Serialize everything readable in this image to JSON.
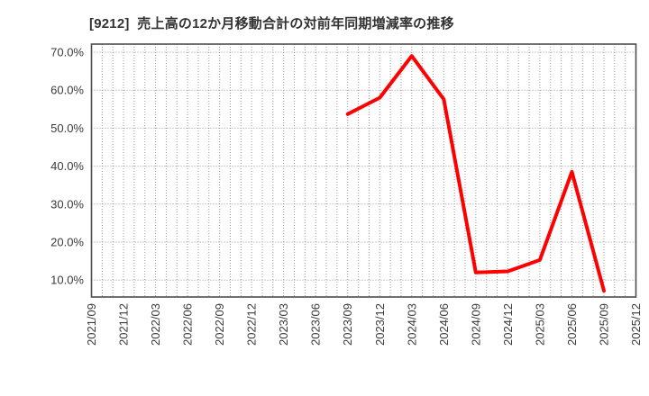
{
  "header": {
    "title": "[9212]  売上高の12か月移動合計の対前年同期増減率の推移"
  },
  "colors": {
    "background": "#ffffff",
    "title_text": "#333333",
    "axis_border": "#4d4d4d",
    "grid": "#999999",
    "tick_label": "#3a3a3a",
    "line": "#ff0000"
  },
  "chart_data": {
    "type": "line",
    "title": "[9212]  売上高の12か月移動合計の対前年同期増減率の推移",
    "xlabel": "",
    "ylabel": "",
    "x_tick_labels": [
      "2021/09",
      "2021/12",
      "2022/03",
      "2022/06",
      "2022/09",
      "2022/12",
      "2023/03",
      "2023/06",
      "2023/09",
      "2023/12",
      "2024/03",
      "2024/06",
      "2024/09",
      "2024/12",
      "2025/03",
      "2025/06",
      "2025/09",
      "2025/12"
    ],
    "y_tick_labels": [
      "70.0%",
      "60.0%",
      "50.0%",
      "40.0%",
      "30.0%",
      "20.0%",
      "10.0%"
    ],
    "y_ticks": [
      70,
      60,
      50,
      40,
      30,
      20,
      10
    ],
    "ylim": [
      5.5,
      72.1
    ],
    "x_range": {
      "start": "2021/09",
      "end": "2025/12",
      "months_span": 51,
      "major_tick_interval_months": 3,
      "minor_grid_interval_months": 1
    },
    "grid": {
      "style": "dotted",
      "horizontal": "at each 10% tick",
      "vertical": "monthly"
    },
    "legend": "none",
    "series": [
      {
        "color": "#ff0000",
        "points": [
          {
            "x": "2023/09",
            "y": 53.7
          },
          {
            "x": "2023/12",
            "y": 58.0
          },
          {
            "x": "2024/03",
            "y": 69.0
          },
          {
            "x": "2024/06",
            "y": 57.6
          },
          {
            "x": "2024/09",
            "y": 12.0
          },
          {
            "x": "2024/12",
            "y": 12.3
          },
          {
            "x": "2025/03",
            "y": 15.3
          },
          {
            "x": "2025/06",
            "y": 38.5
          },
          {
            "x": "2025/09",
            "y": 7.2
          }
        ]
      }
    ]
  }
}
